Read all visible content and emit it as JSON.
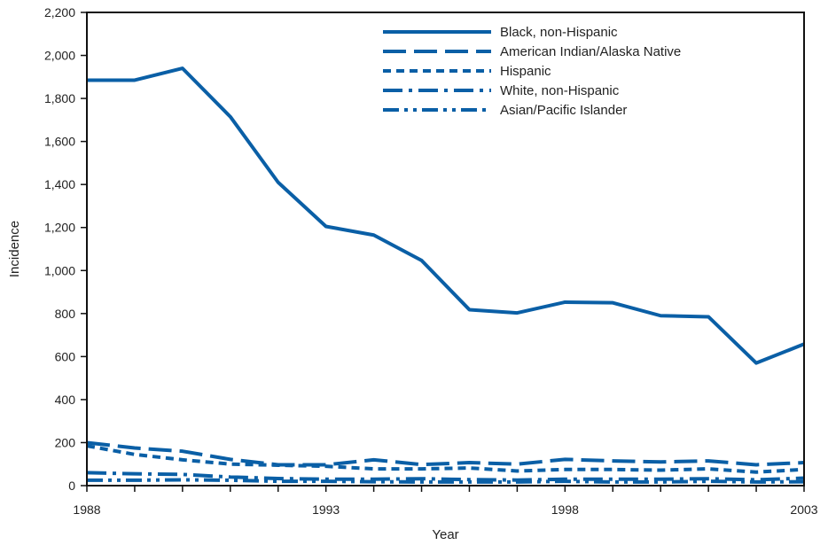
{
  "chart_data": {
    "type": "line",
    "title": "",
    "xlabel": "Year",
    "ylabel": "Incidence",
    "x": [
      1988,
      1989,
      1990,
      1991,
      1992,
      1993,
      1994,
      1995,
      1996,
      1997,
      1998,
      1999,
      2000,
      2001,
      2002,
      2003
    ],
    "xlim": [
      1988,
      2003
    ],
    "ylim": [
      0,
      2200
    ],
    "x_ticks": [
      1988,
      1993,
      1998,
      2003
    ],
    "x_tick_labels": [
      "1988",
      "1993",
      "1998",
      "2003"
    ],
    "y_ticks": [
      0,
      200,
      400,
      600,
      800,
      1000,
      1200,
      1400,
      1600,
      1800,
      2000,
      2200
    ],
    "y_tick_labels": [
      "0",
      "200",
      "400",
      "600",
      "800",
      "1,000",
      "1,200",
      "1,400",
      "1,600",
      "1,800",
      "2,000",
      "2,200"
    ],
    "grid": false,
    "legend_position": "top-right",
    "color": "#0a5fa6",
    "series": [
      {
        "name": "Black, non-Hispanic",
        "dash": "solid",
        "values": [
          1885,
          1885,
          1940,
          1715,
          1410,
          1205,
          1165,
          1047,
          818,
          803,
          853,
          850,
          790,
          785,
          570,
          658
        ]
      },
      {
        "name": "American Indian/Alaska Native",
        "dash": "long-dash",
        "values": [
          200,
          175,
          160,
          122,
          97,
          97,
          120,
          98,
          107,
          100,
          122,
          115,
          110,
          115,
          97,
          107
        ]
      },
      {
        "name": "Hispanic",
        "dash": "short-dash",
        "values": [
          185,
          145,
          120,
          100,
          95,
          90,
          78,
          78,
          82,
          68,
          75,
          75,
          72,
          78,
          63,
          75
        ]
      },
      {
        "name": "White, non-Hispanic",
        "dash": "dash-dot",
        "values": [
          60,
          55,
          52,
          40,
          33,
          30,
          30,
          32,
          28,
          26,
          30,
          30,
          30,
          32,
          27,
          35
        ]
      },
      {
        "name": "Asian/Pacific Islander",
        "dash": "dash-dot-dot",
        "values": [
          25,
          25,
          27,
          25,
          20,
          20,
          18,
          17,
          17,
          17,
          20,
          17,
          17,
          20,
          17,
          18
        ]
      }
    ]
  }
}
